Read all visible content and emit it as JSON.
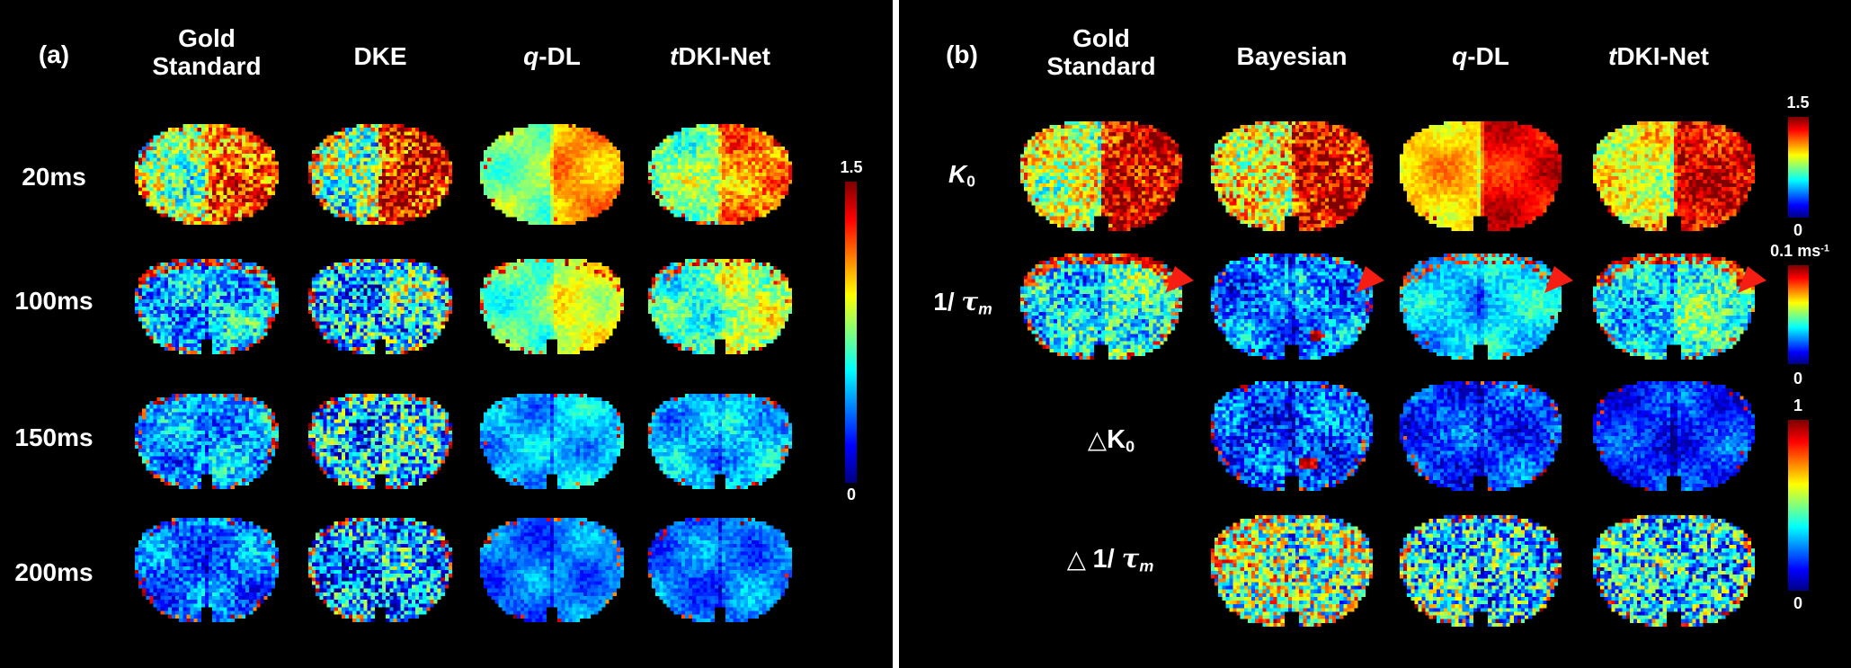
{
  "figure": {
    "accent_arrow_color": "#f61e12",
    "background_color": "#000000",
    "divider_color": "#ffffff"
  },
  "panel_a": {
    "label": "(a)",
    "columns": [
      {
        "id": "gold-standard",
        "italic": "",
        "line1": "Gold",
        "line2": "Standard"
      },
      {
        "id": "dke",
        "italic": "",
        "line1": "DKE",
        "line2": ""
      },
      {
        "id": "q-dl",
        "italic": "q",
        "line1": "-DL",
        "line2": ""
      },
      {
        "id": "tdki-net",
        "italic": "t",
        "line1": "DKI-Net",
        "line2": ""
      }
    ],
    "rows": [
      {
        "id": "20ms",
        "label": "20ms"
      },
      {
        "id": "100ms",
        "label": "100ms"
      },
      {
        "id": "150ms",
        "label": "150ms"
      },
      {
        "id": "200ms",
        "label": "200ms"
      }
    ],
    "colorbar": {
      "max": "1.5",
      "min": "0"
    },
    "maps": [
      {
        "id": "20ms-gold-standard",
        "row": 0,
        "col": 0,
        "l": 0.5,
        "r": 0.78,
        "n": 0.22,
        "e": 0.3
      },
      {
        "id": "20ms-dke",
        "row": 0,
        "col": 1,
        "l": 0.48,
        "r": 0.88,
        "n": 0.26,
        "e": 0.3
      },
      {
        "id": "20ms-q-dl",
        "row": 0,
        "col": 2,
        "l": 0.5,
        "r": 0.72,
        "n": 0.05,
        "e": 0.05
      },
      {
        "id": "20ms-tdki-net",
        "row": 0,
        "col": 3,
        "l": 0.5,
        "r": 0.75,
        "n": 0.12,
        "e": 0.15
      },
      {
        "id": "100ms-gold-standard",
        "row": 1,
        "col": 0,
        "l": 0.3,
        "r": 0.34,
        "n": 0.18,
        "e": 0.35,
        "rim": 0.5
      },
      {
        "id": "100ms-dke",
        "row": 1,
        "col": 1,
        "l": 0.3,
        "r": 0.4,
        "n": 0.3,
        "e": 0.35
      },
      {
        "id": "100ms-q-dl",
        "row": 1,
        "col": 2,
        "l": 0.45,
        "r": 0.6,
        "n": 0.06,
        "e": 0.1,
        "rim": 0.25
      },
      {
        "id": "100ms-tdki-net",
        "row": 1,
        "col": 3,
        "l": 0.42,
        "r": 0.55,
        "n": 0.12,
        "e": 0.2,
        "rim": 0.25
      },
      {
        "id": "150ms-gold-standard",
        "row": 2,
        "col": 0,
        "l": 0.28,
        "r": 0.3,
        "n": 0.14,
        "e": 0.3
      },
      {
        "id": "150ms-dke",
        "row": 2,
        "col": 1,
        "l": 0.32,
        "r": 0.36,
        "n": 0.3,
        "e": 0.3
      },
      {
        "id": "150ms-q-dl",
        "row": 2,
        "col": 2,
        "l": 0.3,
        "r": 0.32,
        "n": 0.07,
        "e": 0.1
      },
      {
        "id": "150ms-tdki-net",
        "row": 2,
        "col": 3,
        "l": 0.3,
        "r": 0.32,
        "n": 0.09,
        "e": 0.15
      },
      {
        "id": "200ms-gold-standard",
        "row": 3,
        "col": 0,
        "l": 0.22,
        "r": 0.24,
        "n": 0.12,
        "e": 0.25
      },
      {
        "id": "200ms-dke",
        "row": 3,
        "col": 1,
        "l": 0.26,
        "r": 0.3,
        "n": 0.28,
        "e": 0.3
      },
      {
        "id": "200ms-q-dl",
        "row": 3,
        "col": 2,
        "l": 0.23,
        "r": 0.25,
        "n": 0.06,
        "e": 0.1
      },
      {
        "id": "200ms-tdki-net",
        "row": 3,
        "col": 3,
        "l": 0.23,
        "r": 0.25,
        "n": 0.07,
        "e": 0.1
      }
    ]
  },
  "panel_b": {
    "label": "(b)",
    "columns": [
      {
        "id": "gold-standard",
        "italic": "",
        "line1": "Gold",
        "line2": "Standard"
      },
      {
        "id": "bayesian",
        "italic": "",
        "line1": "Bayesian",
        "line2": ""
      },
      {
        "id": "q-dl",
        "italic": "q",
        "line1": "-DL",
        "line2": ""
      },
      {
        "id": "tdki-net",
        "italic": "t",
        "line1": "DKI-Net",
        "line2": ""
      }
    ],
    "rows": [
      {
        "id": "k0",
        "tri": "",
        "pre": "",
        "italic": "K",
        "sub": "0",
        "sub_italic": false
      },
      {
        "id": "inv-tau-m",
        "tri": "",
        "pre": "1/ ",
        "italic": "τ",
        "sub": "m",
        "sub_italic": true
      },
      {
        "id": "delta-k0",
        "tri": "△",
        "pre": "K",
        "italic": "",
        "sub": "0",
        "sub_italic": false
      },
      {
        "id": "delta-inv-tau-m",
        "tri": "△ ",
        "pre": "1/ ",
        "italic": "τ",
        "sub": "m",
        "sub_italic": true
      }
    ],
    "colorbars": [
      {
        "id": "k0-bar",
        "max": "1.5",
        "max_sup": "",
        "min": "0"
      },
      {
        "id": "inv-tau-bar",
        "max": "0.1 ms",
        "max_sup": "-1",
        "min": "0"
      },
      {
        "id": "delta-bar",
        "max": "1",
        "max_sup": "",
        "min": "0"
      }
    ],
    "maps": [
      {
        "id": "k0-gold-standard",
        "row": 0,
        "col": 0,
        "l": 0.58,
        "r": 0.92,
        "n": 0.2,
        "e": 0.2
      },
      {
        "id": "k0-bayesian",
        "row": 0,
        "col": 1,
        "l": 0.62,
        "r": 0.9,
        "n": 0.22,
        "e": 0.2
      },
      {
        "id": "k0-q-dl",
        "row": 0,
        "col": 2,
        "l": 0.68,
        "r": 0.88,
        "n": 0.05,
        "e": 0.05
      },
      {
        "id": "k0-tdki-net",
        "row": 0,
        "col": 3,
        "l": 0.6,
        "r": 0.9,
        "n": 0.14,
        "e": 0.1
      },
      {
        "id": "inv-tau-gold-standard",
        "row": 1,
        "col": 0,
        "l": 0.35,
        "r": 0.42,
        "n": 0.2,
        "e": 0.3,
        "rim": 0.8,
        "arrow": true
      },
      {
        "id": "inv-tau-bayesian",
        "row": 1,
        "col": 1,
        "l": 0.24,
        "r": 0.26,
        "n": 0.16,
        "e": 0.2,
        "hs": [
          0.3,
          0.55,
          0.09
        ],
        "arrow": true
      },
      {
        "id": "inv-tau-q-dl",
        "row": 1,
        "col": 2,
        "l": 0.32,
        "r": 0.36,
        "n": 0.08,
        "e": 0.1,
        "rim": 0.3,
        "arrow": true
      },
      {
        "id": "inv-tau-tdki-net",
        "row": 1,
        "col": 3,
        "l": 0.33,
        "r": 0.45,
        "n": 0.16,
        "e": 0.2,
        "rim": 0.7,
        "arrow": true
      },
      {
        "id": "delta-k0-bayesian",
        "row": 2,
        "col": 1,
        "l": 0.2,
        "r": 0.22,
        "n": 0.16,
        "e": 0.15,
        "hs": [
          0.2,
          0.5,
          0.13
        ]
      },
      {
        "id": "delta-k0-q-dl",
        "row": 2,
        "col": 2,
        "l": 0.18,
        "r": 0.19,
        "n": 0.11,
        "e": 0.1
      },
      {
        "id": "delta-k0-tdki-net",
        "row": 2,
        "col": 3,
        "l": 0.16,
        "r": 0.17,
        "n": 0.09,
        "e": 0.1
      },
      {
        "id": "delta-inv-tau-bayesian",
        "row": 3,
        "col": 1,
        "l": 0.55,
        "r": 0.5,
        "n": 0.33,
        "e": 0.2
      },
      {
        "id": "delta-inv-tau-q-dl",
        "row": 3,
        "col": 2,
        "l": 0.38,
        "r": 0.36,
        "n": 0.3,
        "e": 0.2
      },
      {
        "id": "delta-inv-tau-tdki-net",
        "row": 3,
        "col": 3,
        "l": 0.38,
        "r": 0.36,
        "n": 0.3,
        "e": 0.2
      }
    ]
  }
}
